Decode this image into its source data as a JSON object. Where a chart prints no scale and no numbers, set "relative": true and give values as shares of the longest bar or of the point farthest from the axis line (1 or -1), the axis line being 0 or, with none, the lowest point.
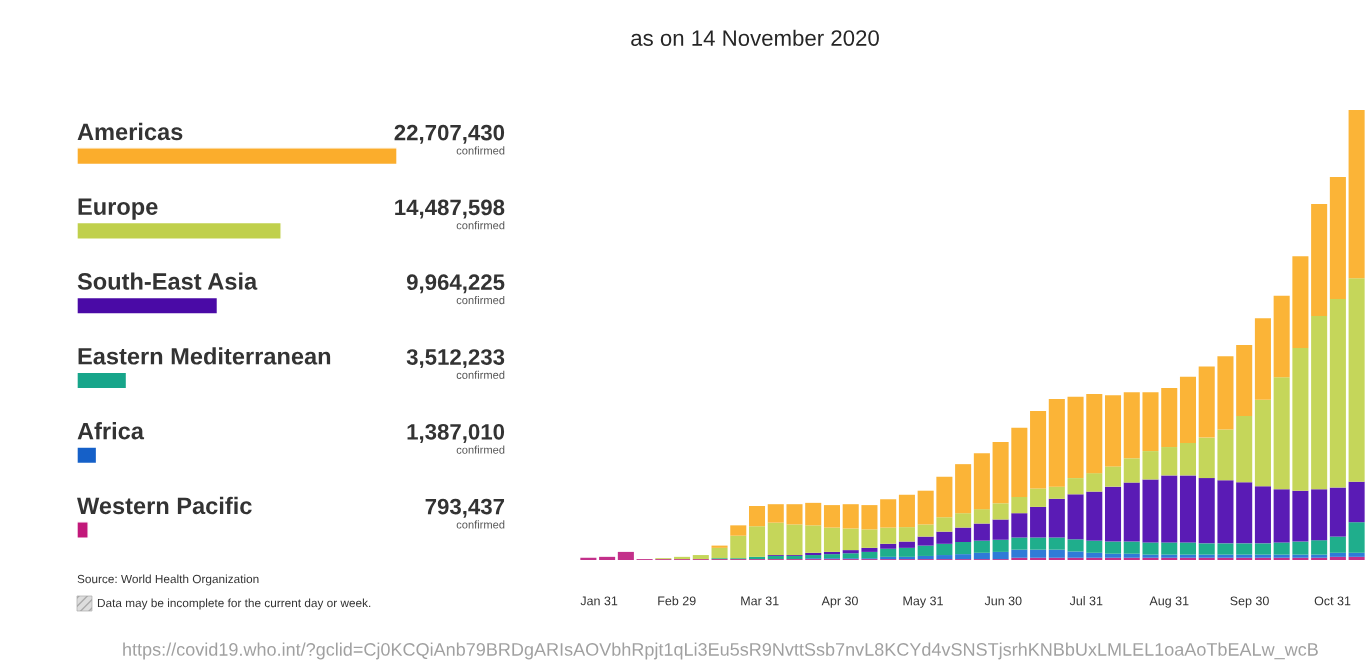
{
  "chart_data": [
    {
      "type": "bar",
      "orientation": "horizontal",
      "categories": [
        "Americas",
        "Europe",
        "South-East Asia",
        "Eastern Mediterranean",
        "Africa",
        "Western Pacific"
      ],
      "values": [
        22707430,
        14487598,
        9964225,
        3512233,
        1387010,
        793437
      ],
      "colors": [
        "#fbad2c",
        "#c0d04c",
        "#4a0aa6",
        "#17a58a",
        "#1560c8",
        "#c2187a"
      ],
      "value_labels": [
        "22,707,430",
        "14,487,598",
        "9,964,225",
        "3,512,233",
        "1,387,010",
        "793,437"
      ],
      "tick_labels": false,
      "grid": false,
      "legend": false,
      "annotations": [
        "confirmed",
        "confirmed",
        "confirmed",
        "confirmed",
        "confirmed",
        "confirmed",
        "Source: World Health Organization",
        "Data may be incomplete for the current day or week.",
        "https://covid19.who.int/?gclid=Cj0KCQiAnb79BRDgARIsAOVbhRpjt1qLi3Eu5sR9NvttSsb7nvL8KCYd4vSNSTjsrhKNBbUxLMLEL1oaAoTbEALw_wcB"
      ]
    },
    {
      "type": "bar",
      "title": "as on 14 November 2020",
      "stacked": true,
      "relative": true,
      "tick_labels": "x",
      "grid": false,
      "legend": false,
      "x": [
        "2020-01-27",
        "2020-02-03",
        "2020-02-10",
        "2020-02-17",
        "2020-02-24",
        "2020-03-02",
        "2020-03-09",
        "2020-03-16",
        "2020-03-23",
        "2020-03-30",
        "2020-04-06",
        "2020-04-13",
        "2020-04-20",
        "2020-04-27",
        "2020-05-04",
        "2020-05-11",
        "2020-05-18",
        "2020-05-25",
        "2020-06-01",
        "2020-06-08",
        "2020-06-15",
        "2020-06-22",
        "2020-06-29",
        "2020-07-06",
        "2020-07-13",
        "2020-07-20",
        "2020-07-27",
        "2020-08-03",
        "2020-08-10",
        "2020-08-17",
        "2020-08-24",
        "2020-08-31",
        "2020-09-07",
        "2020-09-14",
        "2020-09-21",
        "2020-09-28",
        "2020-10-05",
        "2020-10-12",
        "2020-10-19",
        "2020-10-26",
        "2020-11-02",
        "2020-11-09"
      ],
      "xlim": [
        "2020-01-22",
        "2020-11-14"
      ],
      "xticks": [
        {
          "value": "2020-01-31",
          "label": "Jan 31"
        },
        {
          "value": "2020-02-29",
          "label": "Feb 29"
        },
        {
          "value": "2020-03-31",
          "label": "Mar 31"
        },
        {
          "value": "2020-04-30",
          "label": "Apr 30"
        },
        {
          "value": "2020-05-31",
          "label": "May 31"
        },
        {
          "value": "2020-06-30",
          "label": "Jun 30"
        },
        {
          "value": "2020-07-31",
          "label": "Jul 31"
        },
        {
          "value": "2020-08-31",
          "label": "Aug 31"
        },
        {
          "value": "2020-09-30",
          "label": "Sep 30"
        },
        {
          "value": "2020-10-31",
          "label": "Oct 31"
        }
      ],
      "series": [
        {
          "color": "#c3308a",
          "values": [
            0.005,
            0.007,
            0.018,
            0.002,
            0.002,
            0.002,
            0.002,
            0.002,
            0.002,
            0.002,
            0.002,
            0.002,
            0.002,
            0.002,
            0.002,
            0.002,
            0.002,
            0.002,
            0.002,
            0.002,
            0.002,
            0.002,
            0.002,
            0.005,
            0.005,
            0.005,
            0.005,
            0.005,
            0.005,
            0.005,
            0.005,
            0.005,
            0.005,
            0.005,
            0.005,
            0.005,
            0.005,
            0.005,
            0.005,
            0.005,
            0.007,
            0.007
          ]
        },
        {
          "color": "#2f7bd8",
          "values": [
            0,
            0,
            0,
            0,
            0,
            0,
            0,
            0,
            0,
            0,
            0,
            0,
            0.002,
            0.002,
            0.002,
            0.002,
            0.005,
            0.005,
            0.007,
            0.009,
            0.011,
            0.014,
            0.016,
            0.018,
            0.018,
            0.018,
            0.014,
            0.011,
            0.009,
            0.009,
            0.007,
            0.007,
            0.007,
            0.007,
            0.007,
            0.007,
            0.007,
            0.007,
            0.007,
            0.007,
            0.009,
            0.009
          ]
        },
        {
          "color": "#1fae8c",
          "values": [
            0,
            0,
            0,
            0,
            0,
            0,
            0,
            0.002,
            0.002,
            0.005,
            0.007,
            0.007,
            0.007,
            0.009,
            0.011,
            0.014,
            0.018,
            0.02,
            0.023,
            0.025,
            0.027,
            0.027,
            0.027,
            0.027,
            0.027,
            0.027,
            0.027,
            0.027,
            0.027,
            0.027,
            0.027,
            0.027,
            0.027,
            0.025,
            0.025,
            0.025,
            0.025,
            0.027,
            0.029,
            0.032,
            0.036,
            0.068
          ]
        },
        {
          "color": "#5a1bb5",
          "values": [
            0,
            0,
            0,
            0,
            0,
            0,
            0,
            0,
            0,
            0,
            0.002,
            0.002,
            0.005,
            0.005,
            0.007,
            0.009,
            0.011,
            0.014,
            0.02,
            0.027,
            0.032,
            0.038,
            0.045,
            0.054,
            0.068,
            0.086,
            0.1,
            0.109,
            0.122,
            0.131,
            0.14,
            0.149,
            0.149,
            0.145,
            0.14,
            0.136,
            0.127,
            0.118,
            0.113,
            0.113,
            0.109,
            0.09
          ]
        },
        {
          "color": "#c5d65a",
          "values": [
            0,
            0,
            0,
            0,
            0.002,
            0.005,
            0.009,
            0.023,
            0.05,
            0.068,
            0.072,
            0.068,
            0.061,
            0.054,
            0.048,
            0.041,
            0.036,
            0.032,
            0.027,
            0.032,
            0.032,
            0.032,
            0.036,
            0.036,
            0.041,
            0.027,
            0.036,
            0.041,
            0.045,
            0.054,
            0.063,
            0.063,
            0.072,
            0.09,
            0.113,
            0.147,
            0.192,
            0.249,
            0.317,
            0.385,
            0.419,
            0.452
          ]
        },
        {
          "color": "#fbb437",
          "values": [
            0,
            0,
            0,
            0,
            0,
            0,
            0,
            0.005,
            0.023,
            0.045,
            0.041,
            0.045,
            0.05,
            0.05,
            0.054,
            0.054,
            0.063,
            0.072,
            0.075,
            0.09,
            0.109,
            0.124,
            0.136,
            0.154,
            0.172,
            0.195,
            0.181,
            0.176,
            0.158,
            0.147,
            0.131,
            0.131,
            0.147,
            0.158,
            0.163,
            0.158,
            0.181,
            0.181,
            0.204,
            0.249,
            0.271,
            0.374
          ]
        }
      ]
    }
  ]
}
